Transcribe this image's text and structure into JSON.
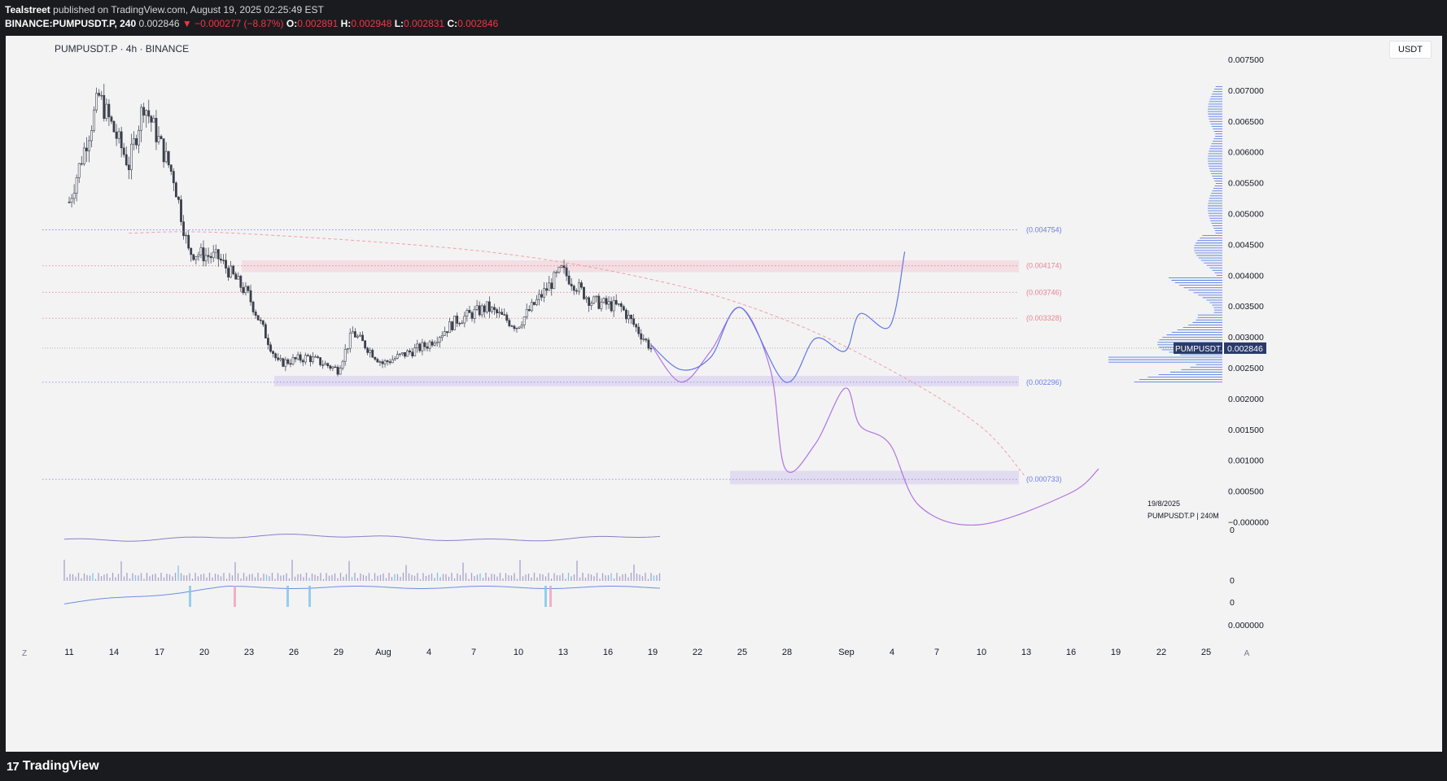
{
  "header": {
    "author": "Tealstreet",
    "published_text": "published on TradingView.com, August 19, 2025 02:25:49 EST",
    "symbol_line": "BINANCE:PUMPUSDT.P, 240",
    "last": "0.002846",
    "change": "▼ −0.000277 (−8.87%)",
    "o_label": "O:",
    "o_value": "0.002891",
    "h_label": "H:",
    "h_value": "0.002948",
    "l_label": "L:",
    "l_value": "0.002831",
    "c_label": "C:",
    "c_value": "0.002846"
  },
  "chart_title": "PUMPUSDT.P · 4h · BINANCE",
  "unit_button": "USDT",
  "brand": {
    "logo": "17",
    "name": "TradingView"
  },
  "colors": {
    "up": "#555a66",
    "level_blue": "#5b6ee0",
    "level_red": "#e06f7a",
    "purple": "#b274e0",
    "blue_path": "#6175e8",
    "dashed_curve": "#f0a0a8",
    "volume_profile": "#3f6de0"
  },
  "chart_data": {
    "type": "candlestick",
    "title": "PUMPUSDT.P · 4h · BINANCE",
    "y_axis": {
      "unit": "USDT",
      "range": [
        -0.0002,
        0.0077
      ],
      "ticks": [
        "0.007500",
        "0.007000",
        "0.006500",
        "0.006000",
        "0.005500",
        "0.005000",
        "0.004500",
        "0.004000",
        "0.003500",
        "0.003000",
        "0.002500",
        "0.002000",
        "0.001500",
        "0.001000",
        "0.000500",
        "−0.000000"
      ],
      "lower_ticks": [
        "0",
        "0",
        "0",
        "0.000000"
      ]
    },
    "x_axis": {
      "ticks": [
        "11",
        "14",
        "17",
        "20",
        "23",
        "26",
        "29",
        "Aug",
        "4",
        "7",
        "10",
        "13",
        "16",
        "19",
        "22",
        "25",
        "28",
        "Sep",
        "4",
        "7",
        "10",
        "13",
        "16",
        "19",
        "22",
        "25"
      ],
      "left_button": "Z",
      "right_button": "A"
    },
    "price_series_approx": [
      {
        "x": "Jul 11",
        "y": 0.0052
      },
      {
        "x": "Jul 13",
        "y": 0.0069
      },
      {
        "x": "Jul 15",
        "y": 0.0058
      },
      {
        "x": "Jul 16",
        "y": 0.0068
      },
      {
        "x": "Jul 18",
        "y": 0.0056
      },
      {
        "x": "Jul 19",
        "y": 0.0044
      },
      {
        "x": "Jul 21",
        "y": 0.0043
      },
      {
        "x": "Jul 23",
        "y": 0.0037
      },
      {
        "x": "Jul 25",
        "y": 0.0026
      },
      {
        "x": "Jul 27",
        "y": 0.0027
      },
      {
        "x": "Jul 29",
        "y": 0.0025
      },
      {
        "x": "Jul 30",
        "y": 0.0031
      },
      {
        "x": "Aug 1",
        "y": 0.0026
      },
      {
        "x": "Aug 4",
        "y": 0.0029
      },
      {
        "x": "Aug 6",
        "y": 0.0033
      },
      {
        "x": "Aug 8",
        "y": 0.0035
      },
      {
        "x": "Aug 10",
        "y": 0.0032
      },
      {
        "x": "Aug 13",
        "y": 0.0041
      },
      {
        "x": "Aug 15",
        "y": 0.0036
      },
      {
        "x": "Aug 17",
        "y": 0.0035
      },
      {
        "x": "Aug 19",
        "y": 0.002846
      }
    ],
    "levels": [
      {
        "label": "(0.004754)",
        "value": 0.004754,
        "color": "blue"
      },
      {
        "label": "(0.004174)",
        "value": 0.004174,
        "color": "red"
      },
      {
        "label": "(0.003746)",
        "value": 0.003746,
        "color": "red"
      },
      {
        "label": "(0.003328)",
        "value": 0.003328,
        "color": "red"
      },
      {
        "label": "(0.002296)",
        "value": 0.002296,
        "color": "blue"
      },
      {
        "label": "(0.000733)",
        "value": 0.000733,
        "color": "blue"
      }
    ],
    "current_price": {
      "symbol": "PUMPUSDT.P",
      "value": "0.002846"
    },
    "projection_purple_approx": [
      {
        "x": "Aug 19",
        "y": 0.0029
      },
      {
        "x": "Aug 21",
        "y": 0.0023
      },
      {
        "x": "Aug 23",
        "y": 0.0028
      },
      {
        "x": "Aug 25",
        "y": 0.0035
      },
      {
        "x": "Aug 27",
        "y": 0.0025
      },
      {
        "x": "Aug 28",
        "y": 0.0009
      },
      {
        "x": "Aug 30",
        "y": 0.0013
      },
      {
        "x": "Sep 1",
        "y": 0.0022
      },
      {
        "x": "Sep 2",
        "y": 0.0016
      },
      {
        "x": "Sep 4",
        "y": 0.0013
      },
      {
        "x": "Sep 6",
        "y": 0.0003
      },
      {
        "x": "Sep 10",
        "y": 0.0
      },
      {
        "x": "Sep 16",
        "y": 0.0005
      },
      {
        "x": "Sep 18",
        "y": 0.0009
      }
    ],
    "projection_blue_approx": [
      {
        "x": "Aug 19",
        "y": 0.0029
      },
      {
        "x": "Aug 21",
        "y": 0.0025
      },
      {
        "x": "Aug 23",
        "y": 0.0027
      },
      {
        "x": "Aug 25",
        "y": 0.0035
      },
      {
        "x": "Aug 28",
        "y": 0.0023
      },
      {
        "x": "Aug 30",
        "y": 0.003
      },
      {
        "x": "Sep 1",
        "y": 0.0028
      },
      {
        "x": "Sep 2",
        "y": 0.0034
      },
      {
        "x": "Sep 4",
        "y": 0.0032
      },
      {
        "x": "Sep 5",
        "y": 0.0044
      }
    ],
    "dashed_curve_approx": [
      {
        "x": "Jul 15",
        "y": 0.0047
      },
      {
        "x": "Jul 22",
        "y": 0.0047
      },
      {
        "x": "Aug 8",
        "y": 0.0044
      },
      {
        "x": "Aug 20",
        "y": 0.0039
      },
      {
        "x": "Aug 28",
        "y": 0.0033
      },
      {
        "x": "Sep 4",
        "y": 0.0025
      },
      {
        "x": "Sep 10",
        "y": 0.0016
      },
      {
        "x": "Sep 13",
        "y": 0.0008
      }
    ],
    "zones": [
      {
        "from": 0.00407,
        "to": 0.00426,
        "color": "red"
      },
      {
        "from": 0.00223,
        "to": 0.0024,
        "color": "purple"
      },
      {
        "from": 0.00065,
        "to": 0.00087,
        "color": "purple"
      }
    ],
    "annotations": {
      "date": "19/8/2025",
      "symbol_interval": "PUMPUSDT.P  |  240M"
    },
    "grid": false
  }
}
